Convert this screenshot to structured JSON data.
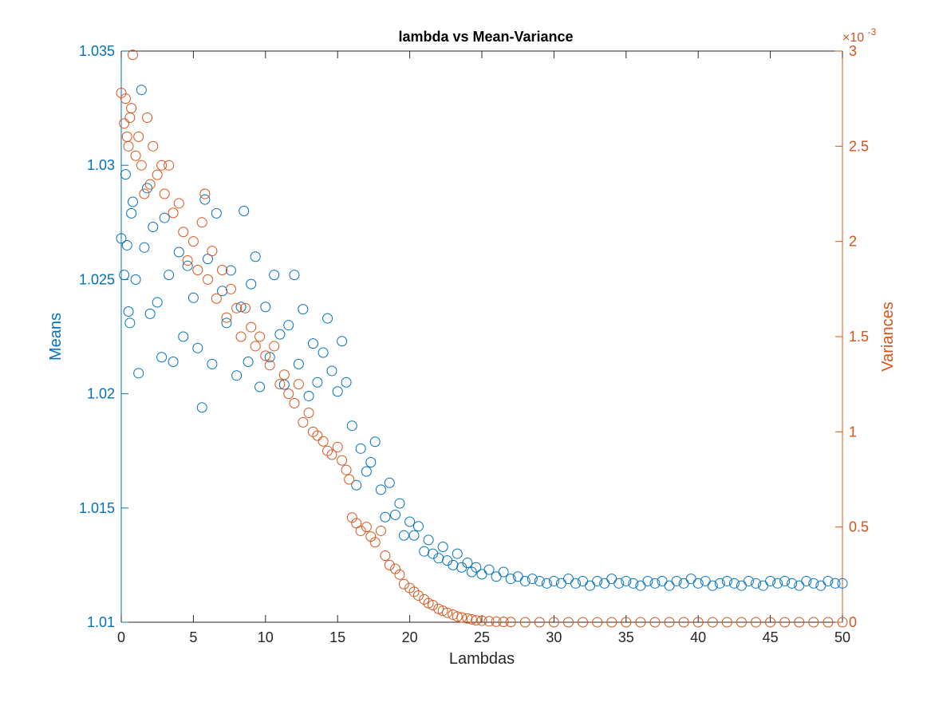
{
  "chart_data": {
    "type": "scatter",
    "title": "lambda vs Mean-Variance",
    "xlabel": "Lambdas",
    "ylabel_left": "Means",
    "ylabel_right": "Variances",
    "xlim": [
      0,
      50
    ],
    "ylim_left": [
      1.01,
      1.035
    ],
    "ylim_right": [
      0,
      0.003
    ],
    "right_axis_exponent_label": "×10",
    "right_axis_exponent_power": "-3",
    "grid": false,
    "legend": "none",
    "x_ticks": [
      "0",
      "5",
      "10",
      "15",
      "20",
      "25",
      "30",
      "35",
      "40",
      "45",
      "50"
    ],
    "y_ticks_left": [
      "1.01",
      "1.015",
      "1.02",
      "1.025",
      "1.03",
      "1.035"
    ],
    "y_ticks_right": [
      "0",
      "0.5",
      "1",
      "1.5",
      "2",
      "2.5",
      "3"
    ],
    "colors": {
      "means": "#0072BD",
      "variances": "#D95319",
      "axes": "#262626"
    },
    "series": [
      {
        "axis": "left",
        "marker": "circle-open",
        "color": "#0072BD",
        "points": [
          [
            0.0,
            1.0268
          ],
          [
            0.2,
            1.0252
          ],
          [
            0.3,
            1.0296
          ],
          [
            0.4,
            1.0265
          ],
          [
            0.5,
            1.0236
          ],
          [
            0.6,
            1.0231
          ],
          [
            0.7,
            1.0279
          ],
          [
            0.8,
            1.0284
          ],
          [
            1.0,
            1.025
          ],
          [
            1.2,
            1.0209
          ],
          [
            1.4,
            1.0333
          ],
          [
            1.6,
            1.0264
          ],
          [
            1.8,
            1.029
          ],
          [
            2.0,
            1.0235
          ],
          [
            2.2,
            1.0273
          ],
          [
            2.5,
            1.024
          ],
          [
            2.8,
            1.0216
          ],
          [
            3.0,
            1.0277
          ],
          [
            3.3,
            1.0252
          ],
          [
            3.6,
            1.0214
          ],
          [
            4.0,
            1.0262
          ],
          [
            4.3,
            1.0225
          ],
          [
            4.6,
            1.0256
          ],
          [
            5.0,
            1.0242
          ],
          [
            5.3,
            1.022
          ],
          [
            5.6,
            1.0194
          ],
          [
            5.8,
            1.0285
          ],
          [
            6.0,
            1.0259
          ],
          [
            6.3,
            1.0213
          ],
          [
            6.6,
            1.0279
          ],
          [
            7.0,
            1.0245
          ],
          [
            7.3,
            1.0231
          ],
          [
            7.6,
            1.0254
          ],
          [
            8.0,
            1.0208
          ],
          [
            8.3,
            1.0238
          ],
          [
            8.5,
            1.028
          ],
          [
            8.8,
            1.0214
          ],
          [
            9.0,
            1.0248
          ],
          [
            9.3,
            1.026
          ],
          [
            9.6,
            1.0203
          ],
          [
            10.0,
            1.0238
          ],
          [
            10.3,
            1.0216
          ],
          [
            10.6,
            1.0252
          ],
          [
            11.0,
            1.0226
          ],
          [
            11.3,
            1.0204
          ],
          [
            11.6,
            1.023
          ],
          [
            12.0,
            1.0252
          ],
          [
            12.3,
            1.0213
          ],
          [
            12.6,
            1.0237
          ],
          [
            13.0,
            1.0199
          ],
          [
            13.3,
            1.0222
          ],
          [
            13.6,
            1.0205
          ],
          [
            14.0,
            1.0218
          ],
          [
            14.3,
            1.0233
          ],
          [
            14.6,
            1.021
          ],
          [
            15.0,
            1.0201
          ],
          [
            15.3,
            1.0223
          ],
          [
            15.6,
            1.0205
          ],
          [
            16.0,
            1.0186
          ],
          [
            16.3,
            1.016
          ],
          [
            16.6,
            1.0176
          ],
          [
            17.0,
            1.0166
          ],
          [
            17.3,
            1.017
          ],
          [
            17.6,
            1.0179
          ],
          [
            18.0,
            1.0158
          ],
          [
            18.3,
            1.0146
          ],
          [
            18.6,
            1.0161
          ],
          [
            19.0,
            1.0147
          ],
          [
            19.3,
            1.0152
          ],
          [
            19.6,
            1.0138
          ],
          [
            20.0,
            1.0144
          ],
          [
            20.3,
            1.0138
          ],
          [
            20.6,
            1.0142
          ],
          [
            21.0,
            1.0131
          ],
          [
            21.3,
            1.0136
          ],
          [
            21.6,
            1.013
          ],
          [
            22.0,
            1.0128
          ],
          [
            22.3,
            1.0133
          ],
          [
            22.6,
            1.0127
          ],
          [
            23.0,
            1.0125
          ],
          [
            23.3,
            1.013
          ],
          [
            23.6,
            1.0124
          ],
          [
            24.0,
            1.0126
          ],
          [
            24.3,
            1.0122
          ],
          [
            24.6,
            1.0124
          ],
          [
            25.0,
            1.0121
          ],
          [
            25.5,
            1.0123
          ],
          [
            26.0,
            1.012
          ],
          [
            26.5,
            1.0122
          ],
          [
            27.0,
            1.0119
          ],
          [
            27.5,
            1.012
          ],
          [
            28.0,
            1.0118
          ],
          [
            28.5,
            1.0119
          ],
          [
            29.0,
            1.0118
          ],
          [
            29.5,
            1.0117
          ],
          [
            30.0,
            1.0118
          ],
          [
            30.5,
            1.0117
          ],
          [
            31.0,
            1.0119
          ],
          [
            31.5,
            1.0117
          ],
          [
            32.0,
            1.0118
          ],
          [
            32.5,
            1.0116
          ],
          [
            33.0,
            1.0118
          ],
          [
            33.5,
            1.0117
          ],
          [
            34.0,
            1.0119
          ],
          [
            34.5,
            1.0117
          ],
          [
            35.0,
            1.0118
          ],
          [
            35.5,
            1.0117
          ],
          [
            36.0,
            1.0116
          ],
          [
            36.5,
            1.0118
          ],
          [
            37.0,
            1.0117
          ],
          [
            37.5,
            1.0118
          ],
          [
            38.0,
            1.0116
          ],
          [
            38.5,
            1.0118
          ],
          [
            39.0,
            1.0117
          ],
          [
            39.5,
            1.0119
          ],
          [
            40.0,
            1.0117
          ],
          [
            40.5,
            1.0118
          ],
          [
            41.0,
            1.0116
          ],
          [
            41.5,
            1.0117
          ],
          [
            42.0,
            1.0118
          ],
          [
            42.5,
            1.0117
          ],
          [
            43.0,
            1.0116
          ],
          [
            43.5,
            1.0118
          ],
          [
            44.0,
            1.0117
          ],
          [
            44.5,
            1.0116
          ],
          [
            45.0,
            1.0118
          ],
          [
            45.5,
            1.0117
          ],
          [
            46.0,
            1.0118
          ],
          [
            46.5,
            1.0117
          ],
          [
            47.0,
            1.0116
          ],
          [
            47.5,
            1.0118
          ],
          [
            48.0,
            1.0117
          ],
          [
            48.5,
            1.0116
          ],
          [
            49.0,
            1.0118
          ],
          [
            49.5,
            1.0117
          ],
          [
            50.0,
            1.0117
          ]
        ]
      },
      {
        "axis": "right",
        "marker": "circle-open",
        "color": "#D95319",
        "points": [
          [
            0.0,
            0.00278
          ],
          [
            0.2,
            0.00262
          ],
          [
            0.3,
            0.00275
          ],
          [
            0.4,
            0.00255
          ],
          [
            0.5,
            0.0025
          ],
          [
            0.6,
            0.00265
          ],
          [
            0.7,
            0.0027
          ],
          [
            0.8,
            0.00298
          ],
          [
            1.0,
            0.00245
          ],
          [
            1.2,
            0.00255
          ],
          [
            1.4,
            0.0024
          ],
          [
            1.6,
            0.00225
          ],
          [
            1.8,
            0.00265
          ],
          [
            2.0,
            0.0023
          ],
          [
            2.2,
            0.0025
          ],
          [
            2.5,
            0.00235
          ],
          [
            2.8,
            0.0024
          ],
          [
            3.0,
            0.00225
          ],
          [
            3.3,
            0.0024
          ],
          [
            3.6,
            0.00215
          ],
          [
            4.0,
            0.0022
          ],
          [
            4.3,
            0.00205
          ],
          [
            4.6,
            0.0019
          ],
          [
            5.0,
            0.002
          ],
          [
            5.3,
            0.00185
          ],
          [
            5.6,
            0.0021
          ],
          [
            5.8,
            0.00225
          ],
          [
            6.0,
            0.0018
          ],
          [
            6.3,
            0.00195
          ],
          [
            6.6,
            0.0017
          ],
          [
            7.0,
            0.00185
          ],
          [
            7.3,
            0.0016
          ],
          [
            7.6,
            0.00175
          ],
          [
            8.0,
            0.00165
          ],
          [
            8.3,
            0.0015
          ],
          [
            8.6,
            0.00165
          ],
          [
            9.0,
            0.00155
          ],
          [
            9.3,
            0.00145
          ],
          [
            9.6,
            0.0015
          ],
          [
            10.0,
            0.0014
          ],
          [
            10.3,
            0.00135
          ],
          [
            10.6,
            0.00145
          ],
          [
            11.0,
            0.00125
          ],
          [
            11.3,
            0.0013
          ],
          [
            11.6,
            0.0012
          ],
          [
            12.0,
            0.00115
          ],
          [
            12.3,
            0.00125
          ],
          [
            12.6,
            0.00105
          ],
          [
            13.0,
            0.0011
          ],
          [
            13.3,
            0.001
          ],
          [
            13.6,
            0.00098
          ],
          [
            14.0,
            0.00095
          ],
          [
            14.3,
            0.0009
          ],
          [
            14.6,
            0.00088
          ],
          [
            15.0,
            0.00092
          ],
          [
            15.3,
            0.00085
          ],
          [
            15.6,
            0.0008
          ],
          [
            15.8,
            0.00075
          ],
          [
            16.0,
            0.00055
          ],
          [
            16.3,
            0.00052
          ],
          [
            16.6,
            0.00048
          ],
          [
            17.0,
            0.0005
          ],
          [
            17.3,
            0.00045
          ],
          [
            17.6,
            0.00042
          ],
          [
            18.0,
            0.00048
          ],
          [
            18.3,
            0.00035
          ],
          [
            18.6,
            0.0003
          ],
          [
            19.0,
            0.00028
          ],
          [
            19.3,
            0.00025
          ],
          [
            19.6,
            0.0002
          ],
          [
            20.0,
            0.00018
          ],
          [
            20.3,
            0.00016
          ],
          [
            20.6,
            0.00014
          ],
          [
            21.0,
            0.00012
          ],
          [
            21.3,
            0.0001
          ],
          [
            21.6,
            9e-05
          ],
          [
            22.0,
            7e-05
          ],
          [
            22.3,
            6e-05
          ],
          [
            22.6,
            5e-05
          ],
          [
            23.0,
            4e-05
          ],
          [
            23.3,
            3e-05
          ],
          [
            23.6,
            2.5e-05
          ],
          [
            24.0,
            2e-05
          ],
          [
            24.3,
            1.5e-05
          ],
          [
            24.6,
            1e-05
          ],
          [
            25.0,
            8e-06
          ],
          [
            25.5,
            5e-06
          ],
          [
            26.0,
            3e-06
          ],
          [
            26.5,
            2e-06
          ],
          [
            27.0,
            1e-06
          ],
          [
            28.0,
            0.0
          ],
          [
            29.0,
            0.0
          ],
          [
            30.0,
            0.0
          ],
          [
            31.0,
            0.0
          ],
          [
            32.0,
            0.0
          ],
          [
            33.0,
            0.0
          ],
          [
            34.0,
            0.0
          ],
          [
            35.0,
            0.0
          ],
          [
            36.0,
            0.0
          ],
          [
            37.0,
            0.0
          ],
          [
            38.0,
            0.0
          ],
          [
            39.0,
            0.0
          ],
          [
            40.0,
            0.0
          ],
          [
            41.0,
            0.0
          ],
          [
            42.0,
            0.0
          ],
          [
            43.0,
            0.0
          ],
          [
            44.0,
            0.0
          ],
          [
            45.0,
            0.0
          ],
          [
            46.0,
            0.0
          ],
          [
            47.0,
            0.0
          ],
          [
            48.0,
            0.0
          ],
          [
            49.0,
            0.0
          ],
          [
            50.0,
            0.0
          ]
        ]
      }
    ]
  }
}
